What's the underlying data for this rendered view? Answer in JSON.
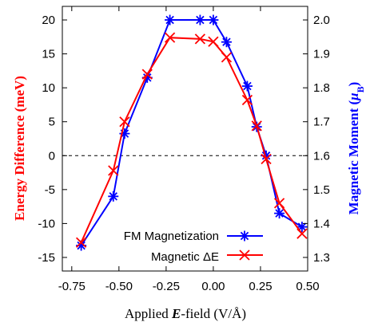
{
  "chart_data": {
    "type": "line",
    "xlabel_prefix": "Applied ",
    "xlabel_var": "E",
    "xlabel_suffix": "-field (V/Å)",
    "ylabel_left": "Energy Difference (meV)",
    "ylabel_right_prefix": "Magnetic Moment (",
    "ylabel_right_var": "μ",
    "ylabel_right_sub": "B",
    "ylabel_right_suffix": ")",
    "xlim": [
      -0.8,
      0.5
    ],
    "ylim_left": [
      -17,
      22
    ],
    "ylim_right": [
      1.26,
      2.04
    ],
    "x_ticks": [
      -0.75,
      -0.5,
      -0.25,
      0.0,
      0.25,
      0.5
    ],
    "x_tick_labels": [
      "-0.75",
      "-0.50",
      "-0.25",
      "0.00",
      "0.25",
      "0.50"
    ],
    "y_left_ticks": [
      -15,
      -10,
      -5,
      0,
      5,
      10,
      15,
      20
    ],
    "y_left_tick_labels": [
      "-15",
      "-10",
      "-5",
      "0",
      "5",
      "10",
      "15",
      "20"
    ],
    "y_right_ticks": [
      1.3,
      1.4,
      1.5,
      1.6,
      1.7,
      1.8,
      1.9,
      2.0
    ],
    "y_right_tick_labels": [
      "1.3",
      "1.4",
      "1.5",
      "1.6",
      "1.7",
      "1.8",
      "1.9",
      "2.0"
    ],
    "reference_line": {
      "axis": "left",
      "y": 0,
      "style": "dashed"
    },
    "legend_placement": "bottom-right",
    "series": [
      {
        "name": "FM Magnetization",
        "axis": "right",
        "marker": "star",
        "color": "#0000ff",
        "x": [
          -0.7,
          -0.53,
          -0.47,
          -0.35,
          -0.23,
          -0.07,
          0.0,
          0.07,
          0.18,
          0.23,
          0.28,
          0.35,
          0.47
        ],
        "y": [
          1.335,
          1.48,
          1.665,
          1.83,
          2.0,
          2.0,
          2.0,
          1.935,
          1.805,
          1.685,
          1.6,
          1.43,
          1.39
        ]
      },
      {
        "name": "Magnetic ΔE",
        "axis": "left",
        "marker": "x",
        "color": "#ff0000",
        "x": [
          -0.7,
          -0.53,
          -0.47,
          -0.35,
          -0.23,
          -0.07,
          0.0,
          0.07,
          0.18,
          0.23,
          0.28,
          0.35,
          0.47
        ],
        "y": [
          -12.8,
          -2.2,
          5.0,
          12.0,
          17.4,
          17.2,
          16.8,
          14.5,
          8.2,
          4.4,
          -0.5,
          -7.0,
          -11.5
        ]
      }
    ]
  },
  "legend": {
    "items": [
      {
        "label": "FM Magnetization"
      },
      {
        "label": "Magnetic ΔE"
      }
    ]
  }
}
